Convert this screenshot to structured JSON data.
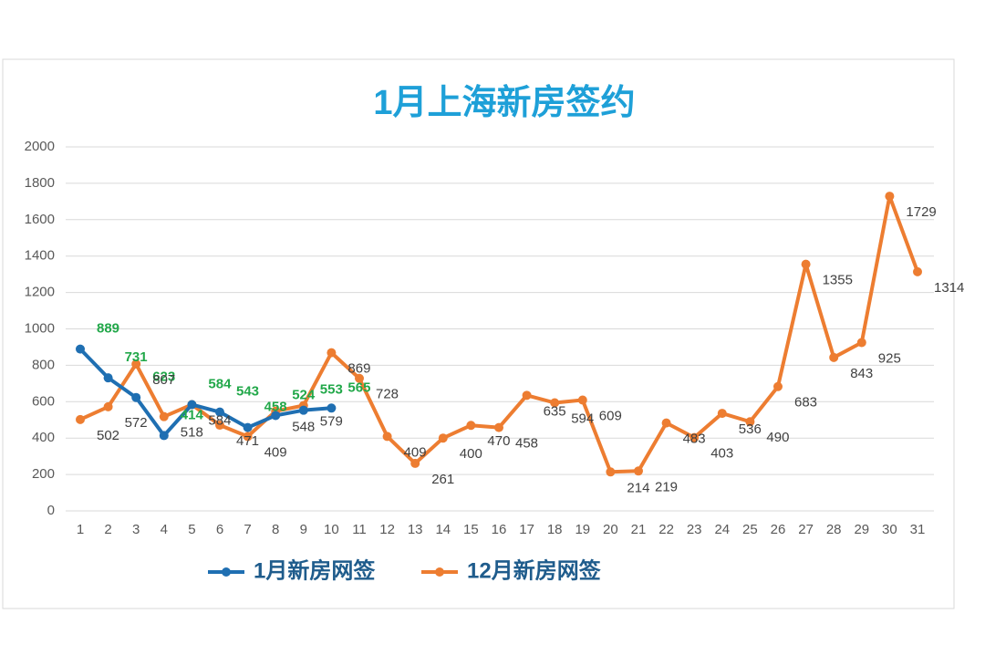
{
  "chart_data": {
    "type": "line",
    "title": "1月上海新房签约",
    "categories": [
      "1",
      "2",
      "3",
      "4",
      "5",
      "6",
      "7",
      "8",
      "9",
      "10",
      "11",
      "12",
      "13",
      "14",
      "15",
      "16",
      "17",
      "18",
      "19",
      "20",
      "21",
      "22",
      "23",
      "24",
      "25",
      "26",
      "27",
      "28",
      "29",
      "30",
      "31"
    ],
    "series": [
      {
        "name": "1月新房网签",
        "color": "#1f6fb2",
        "label_color": "#22a84a",
        "values": [
          889,
          731,
          623,
          414,
          584,
          543,
          458,
          524,
          553,
          565,
          null,
          null,
          null,
          null,
          null,
          null,
          null,
          null,
          null,
          null,
          null,
          null,
          null,
          null,
          null,
          null,
          null,
          null,
          null,
          null,
          null
        ]
      },
      {
        "name": "12月新房网签",
        "color": "#ed7d31",
        "label_color": "#404040",
        "values": [
          502,
          572,
          807,
          518,
          584,
          471,
          409,
          548,
          579,
          869,
          728,
          409,
          261,
          400,
          470,
          458,
          635,
          594,
          609,
          214,
          219,
          483,
          403,
          536,
          490,
          683,
          1355,
          843,
          925,
          1729,
          1314
        ]
      }
    ],
    "ylim": [
      0,
      2000
    ],
    "yticks": [
      0,
      200,
      400,
      600,
      800,
      1000,
      1200,
      1400,
      1600,
      1800,
      2000
    ],
    "grid": true
  }
}
